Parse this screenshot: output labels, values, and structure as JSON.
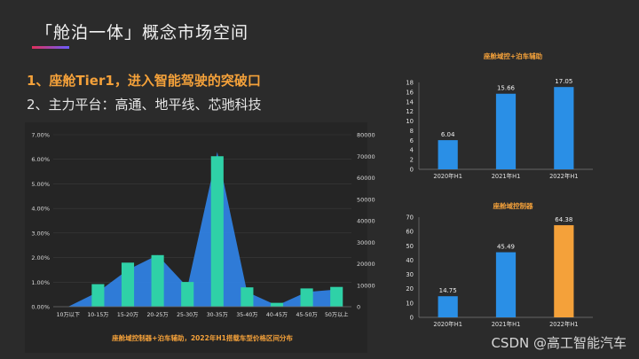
{
  "slide": {
    "title": "「舱泊一体」概念市场空间",
    "point1": "1、座舱Tier1，进入智能驾驶的突破口",
    "point2": "2、主力平台：高通、地平线、芯驰科技",
    "watermark": "CSDN @高工智能汽车"
  },
  "colors": {
    "background": "#2b2b2b",
    "orange": "#f4a13a",
    "blue": "#2a8fe6",
    "teal": "#2fd1a7",
    "area": "#2f7fe0"
  },
  "chart_data": [
    {
      "id": "main",
      "type": "bar",
      "title": "座舱域控制器+泊车辅助，2022年H1搭载车型价格区间分布",
      "categories": [
        "10万以下",
        "10-15万",
        "15-20万",
        "20-25万",
        "25-30万",
        "30-35万",
        "35-40万",
        "40-45万",
        "45-50万",
        "50万以上"
      ],
      "series": [
        {
          "type": "area",
          "axis": "left",
          "values": [
            0.0,
            0.6,
            1.5,
            2.1,
            0.8,
            6.3,
            0.6,
            0.05,
            0.6,
            0.7
          ]
        },
        {
          "type": "bar",
          "axis": "right",
          "values": [
            0,
            10500,
            20500,
            24000,
            11500,
            70000,
            9000,
            1800,
            8500,
            9200
          ]
        }
      ],
      "left_axis": {
        "min": 0,
        "max": 7,
        "ticks": [
          "0.00%",
          "1.00%",
          "2.00%",
          "3.00%",
          "4.00%",
          "5.00%",
          "6.00%",
          "7.00%"
        ]
      },
      "right_axis": {
        "min": 0,
        "max": 80000,
        "ticks": [
          "0",
          "10000",
          "20000",
          "30000",
          "40000",
          "50000",
          "60000",
          "70000",
          "80000"
        ]
      },
      "grid": true
    },
    {
      "id": "top-right",
      "type": "bar",
      "title": "座舱域控+泊车辅助",
      "categories": [
        "2020年H1",
        "2021年H1",
        "2022年H1"
      ],
      "values": [
        6.04,
        15.66,
        17.05
      ],
      "value_labels": [
        "6.04",
        "15.66",
        "17.05"
      ],
      "ylim": [
        0,
        18
      ],
      "yticks": [
        "0",
        "2",
        "4",
        "6",
        "8",
        "10",
        "12",
        "14",
        "16",
        "18"
      ],
      "bar_colors": [
        "#2a8fe6",
        "#2a8fe6",
        "#2a8fe6"
      ]
    },
    {
      "id": "bottom-right",
      "type": "bar",
      "title": "座舱域控制器",
      "categories": [
        "2020年H1",
        "2021年H1",
        "2022年H1"
      ],
      "values": [
        14.75,
        45.49,
        64.38
      ],
      "value_labels": [
        "14.75",
        "45.49",
        "64.38"
      ],
      "ylim": [
        0,
        70
      ],
      "yticks": [
        "0",
        "10",
        "20",
        "30",
        "40",
        "50",
        "60",
        "70"
      ],
      "bar_colors": [
        "#2a8fe6",
        "#2a8fe6",
        "#f4a13a"
      ]
    }
  ]
}
